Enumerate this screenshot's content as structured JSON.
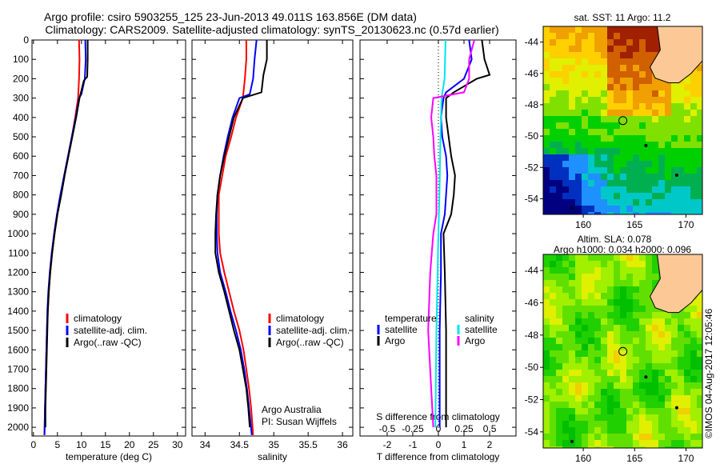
{
  "title_line1": "Argo profile: csiro 5903255_125 23-Jun-2013 49.011S 163.856E (DM data)",
  "title_line2": "Climatology: CARS2009. Satellite-adjusted climatology: synTS_20130623.nc (0.57d earlier)",
  "credit": "©IMOS 04-Aug-2017 12:05:46",
  "colors": {
    "climatology": "#ff0000",
    "satellite": "#0000ff",
    "argo": "#000000",
    "sal_satellite": "#00e5ee",
    "sal_argo": "#ff00ff",
    "land": "#fcc896"
  },
  "chart_data": [
    {
      "type": "line",
      "id": "temperature",
      "xlabel": "temperature (deg C)",
      "ylabel": "",
      "xlim": [
        -0.3,
        31.7
      ],
      "ylim": [
        2045,
        0
      ],
      "xticks": [
        0,
        5,
        10,
        15,
        20,
        25,
        30
      ],
      "yticks": [
        0,
        100,
        200,
        300,
        400,
        500,
        600,
        700,
        800,
        900,
        1000,
        1100,
        1200,
        1300,
        1400,
        1500,
        1600,
        1700,
        1800,
        1900,
        2000
      ],
      "legend": [
        "climatology",
        "satellite-adj. clim.",
        "Argo(..raw -QC)"
      ],
      "series": [
        {
          "name": "climatology",
          "color": "#ff0000",
          "depth": [
            0,
            100,
            200,
            300,
            400,
            500,
            600,
            700,
            800,
            900,
            1000,
            1100,
            1200,
            1300,
            1400,
            1500,
            1600,
            1700,
            1800,
            1900,
            2040
          ],
          "values": [
            9.5,
            9.6,
            9.5,
            9.3,
            8.7,
            8.0,
            7.2,
            6.4,
            5.7,
            5.0,
            4.4,
            3.9,
            3.5,
            3.2,
            3.0,
            2.8,
            2.7,
            2.6,
            2.5,
            2.4,
            2.3
          ]
        },
        {
          "name": "satellite-adj. clim.",
          "color": "#0000ff",
          "depth": [
            0,
            100,
            200,
            280,
            300,
            400,
            500,
            600,
            700,
            800,
            900,
            1000,
            1100,
            1200,
            1300,
            1400,
            1500,
            1600,
            1700,
            1800,
            1900,
            2040
          ],
          "values": [
            10.8,
            10.9,
            10.7,
            10.0,
            9.5,
            8.8,
            8.0,
            7.2,
            6.4,
            5.6,
            4.9,
            4.3,
            3.8,
            3.4,
            3.1,
            2.9,
            2.8,
            2.7,
            2.6,
            2.5,
            2.4,
            2.3
          ]
        },
        {
          "name": "Argo(..raw -QC)",
          "color": "#000000",
          "depth": [
            0,
            100,
            190,
            210,
            300,
            400,
            500,
            600,
            700,
            800,
            900,
            1000,
            1100,
            1200,
            1300,
            1400,
            1500,
            1600,
            1700,
            1800,
            1900,
            2000
          ],
          "values": [
            11.3,
            11.3,
            11.2,
            10.5,
            9.6,
            8.9,
            8.1,
            7.3,
            6.5,
            5.8,
            5.0,
            4.4,
            3.9,
            3.5,
            3.2,
            3.0,
            2.9,
            2.8,
            2.7,
            2.6,
            2.5,
            2.5
          ]
        }
      ]
    },
    {
      "type": "line",
      "id": "salinity",
      "xlabel": "salinity",
      "xlim": [
        33.81,
        36.15
      ],
      "ylim": [
        2045,
        0
      ],
      "xticks": [
        34,
        34.5,
        35,
        35.5,
        36
      ],
      "legend": [
        "climatology",
        "satellite-adj. clim.",
        "Argo(..raw -QC)"
      ],
      "annotation": [
        "Argo Australia",
        "PI: Susan Wijffels"
      ],
      "series": [
        {
          "name": "climatology",
          "color": "#ff0000",
          "depth": [
            0,
            100,
            200,
            300,
            400,
            500,
            600,
            700,
            800,
            900,
            1000,
            1100,
            1200,
            1300,
            1400,
            1500,
            1600,
            1700,
            1800,
            1900,
            2040
          ],
          "values": [
            34.6,
            34.6,
            34.58,
            34.55,
            34.45,
            34.38,
            34.3,
            34.25,
            34.2,
            34.2,
            34.2,
            34.22,
            34.28,
            34.35,
            34.42,
            34.5,
            34.56,
            34.6,
            34.64,
            34.67,
            34.7
          ]
        },
        {
          "name": "satellite-adj. clim.",
          "color": "#0000ff",
          "depth": [
            0,
            100,
            200,
            280,
            300,
            400,
            500,
            600,
            700,
            800,
            900,
            1000,
            1100,
            1200,
            1300,
            1400,
            1500,
            1600,
            1700,
            1800,
            1900,
            2040
          ],
          "values": [
            34.75,
            34.72,
            34.7,
            34.65,
            34.5,
            34.4,
            34.33,
            34.27,
            34.22,
            34.18,
            34.17,
            34.17,
            34.18,
            34.22,
            34.3,
            34.37,
            34.45,
            34.52,
            34.57,
            34.61,
            34.64,
            34.68
          ]
        },
        {
          "name": "Argo(..raw -QC)",
          "color": "#000000",
          "depth": [
            0,
            100,
            180,
            270,
            300,
            400,
            500,
            600,
            700,
            800,
            900,
            1000,
            1100,
            1200,
            1300,
            1400,
            1500,
            1600,
            1700,
            1800,
            1900,
            2000
          ],
          "values": [
            34.9,
            34.9,
            34.85,
            34.82,
            34.55,
            34.42,
            34.35,
            34.28,
            34.22,
            34.18,
            34.16,
            34.15,
            34.15,
            34.2,
            34.28,
            34.35,
            34.42,
            34.5,
            34.55,
            34.6,
            34.63,
            34.65
          ]
        }
      ]
    },
    {
      "type": "line",
      "id": "difference",
      "xlabel": "T difference from climatology",
      "x2label": "S difference from climatology",
      "xlim": [
        -3.06,
        3.03
      ],
      "x2lim": [
        -0.765,
        0.757
      ],
      "ylim": [
        2045,
        0
      ],
      "xticks": [
        -2,
        -1,
        0,
        1,
        2
      ],
      "x2ticks": [
        {
          "v": -0.5,
          "label": "-0.5"
        },
        {
          "v": -0.25,
          "label": "-0.25"
        },
        {
          "v": 0,
          "label": "0"
        },
        {
          "v": 0.25,
          "label": "0.25"
        },
        {
          "v": 0.5,
          "label": "0.5"
        }
      ],
      "legend": {
        "temperature_heading": "temperature",
        "salinity_heading": "salinity",
        "items": [
          "satellite",
          "Argo",
          "satellite",
          "Argo"
        ]
      },
      "series": [
        {
          "name": "T satellite",
          "axis": "T",
          "color": "#0000ff",
          "depth": [
            0,
            100,
            200,
            270,
            300,
            400,
            500,
            600,
            700,
            800,
            900,
            1000,
            1200,
            1500,
            1800,
            2000
          ],
          "values": [
            1.2,
            1.3,
            1.0,
            0.3,
            0.2,
            0.1,
            0.15,
            0.3,
            0.35,
            0.3,
            0.25,
            0.1,
            0.1,
            0.05,
            0.05,
            0.05
          ]
        },
        {
          "name": "T Argo",
          "axis": "T",
          "color": "#000000",
          "depth": [
            0,
            100,
            180,
            200,
            270,
            300,
            400,
            500,
            600,
            700,
            800,
            900,
            1000,
            1200,
            1500,
            1800,
            2000
          ],
          "values": [
            1.7,
            1.8,
            2.0,
            1.5,
            0.6,
            0.3,
            0.3,
            0.4,
            0.5,
            0.65,
            0.6,
            0.5,
            0.2,
            0.25,
            0.3,
            0.3,
            0.3
          ]
        },
        {
          "name": "S satellite",
          "axis": "S",
          "color": "#00e5ee",
          "depth": [
            0,
            200,
            300,
            500,
            800,
            1000,
            1500,
            2000
          ],
          "values": [
            0.07,
            0.06,
            0.03,
            0.02,
            0.01,
            0.0,
            -0.02,
            -0.03
          ]
        },
        {
          "name": "S Argo",
          "axis": "S",
          "color": "#ff00ff",
          "depth": [
            0,
            100,
            200,
            270,
            300,
            400,
            500,
            600,
            700,
            900,
            1000,
            1200,
            1500,
            1800,
            2000
          ],
          "values": [
            0.35,
            0.3,
            0.3,
            0.25,
            -0.05,
            -0.07,
            -0.05,
            -0.04,
            -0.02,
            -0.02,
            -0.05,
            -0.08,
            -0.1,
            -0.07,
            -0.05
          ]
        }
      ]
    },
    {
      "type": "heatmap",
      "id": "sst_map",
      "title": "sat. SST: 11 Argo: 11.2",
      "xlim": [
        156.1,
        171.6
      ],
      "ylim": [
        -55,
        -43
      ],
      "xticks": [
        160,
        165,
        170
      ],
      "yticks": [
        -44,
        -46,
        -48,
        -50,
        -52,
        -54
      ],
      "marker": {
        "lon": 163.856,
        "lat": -49.011
      }
    },
    {
      "type": "heatmap",
      "id": "sla_map",
      "title": [
        "Altim. SLA: 0.078",
        "Argo h1000: 0.034 h2000: 0.096"
      ],
      "xlim": [
        156.1,
        171.6
      ],
      "ylim": [
        -55,
        -43
      ],
      "xticks": [
        160,
        165,
        170
      ],
      "yticks": [
        -44,
        -46,
        -48,
        -50,
        -52,
        -54
      ],
      "marker": {
        "lon": 163.856,
        "lat": -49.011
      }
    }
  ]
}
